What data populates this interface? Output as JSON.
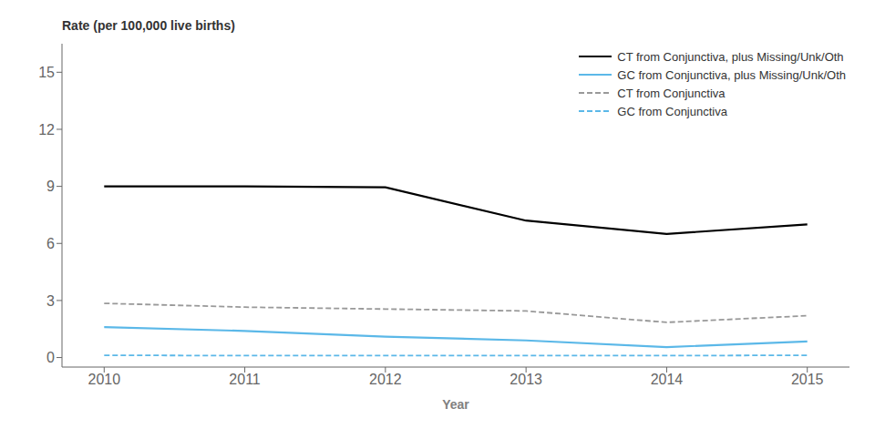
{
  "chart_data": {
    "type": "line",
    "xlabel": "Year",
    "ylabel": "Rate (per 100,000 live births)",
    "x": [
      2010,
      2011,
      2012,
      2013,
      2014,
      2015
    ],
    "xlim": [
      2009.7,
      2015.3
    ],
    "xticks": [
      2010,
      2011,
      2012,
      2013,
      2014,
      2015
    ],
    "ylim": [
      -0.5,
      16.5
    ],
    "yticks": [
      0,
      3,
      6,
      9,
      12,
      15
    ],
    "grid": false,
    "legend": "upper right",
    "series": [
      {
        "name": "CT from Conjunctiva, plus Missing/Unk/Oth",
        "color": "#000000",
        "line_style": "solid",
        "values": [
          9.0,
          9.0,
          8.95,
          7.2,
          6.5,
          7.0
        ]
      },
      {
        "name": "GC from Conjunctiva, plus Missing/Unk/Oth",
        "color": "#5bb8e8",
        "line_style": "solid",
        "values": [
          1.6,
          1.4,
          1.1,
          0.9,
          0.55,
          0.85
        ]
      },
      {
        "name": "CT from Conjunctiva",
        "color": "#999999",
        "line_style": "dashed",
        "values": [
          2.85,
          2.65,
          2.55,
          2.45,
          1.85,
          2.2
        ]
      },
      {
        "name": "GC from Conjunctiva",
        "color": "#5bb8e8",
        "line_style": "dashed",
        "values": [
          0.12,
          0.1,
          0.1,
          0.1,
          0.1,
          0.12
        ]
      }
    ]
  }
}
